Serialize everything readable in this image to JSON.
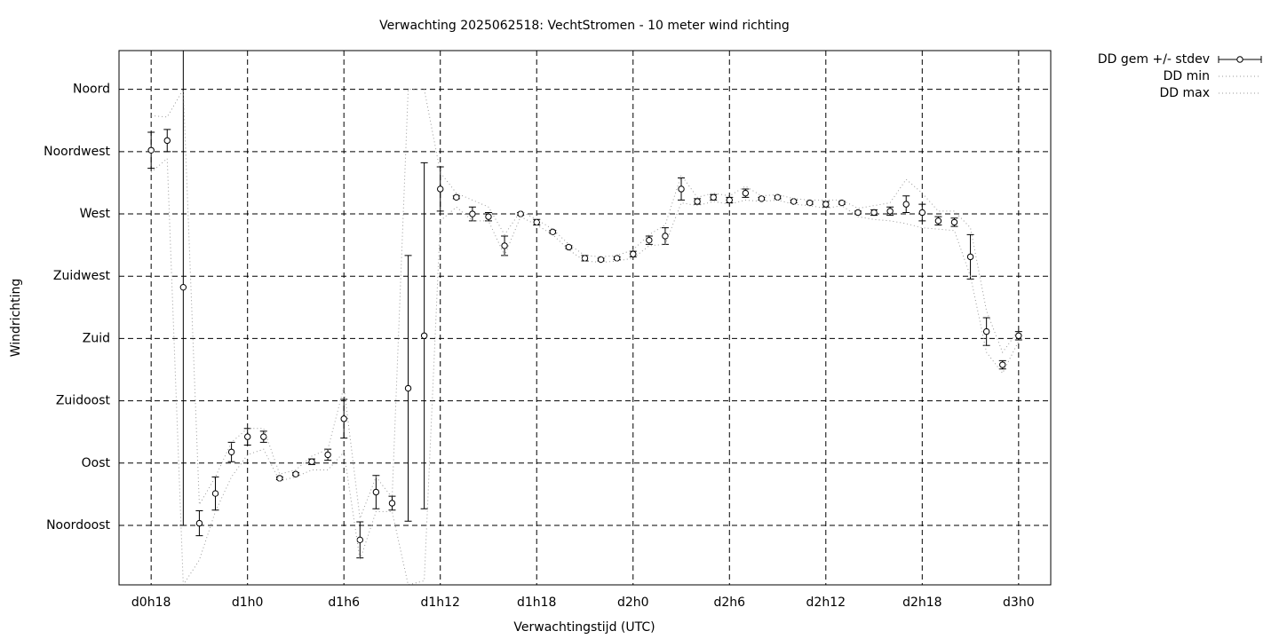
{
  "chart_data": {
    "type": "line",
    "title": "Verwachting 2025062518: VechtStromen - 10 meter wind richting",
    "x_label": "Verwachtingstijd (UTC)",
    "y_label": "Windrichting",
    "x": [
      18,
      19,
      20,
      21,
      22,
      23,
      24,
      25,
      26,
      27,
      28,
      29,
      30,
      31,
      32,
      33,
      34,
      35,
      36,
      37,
      38,
      39,
      40,
      41,
      42,
      43,
      44,
      45,
      46,
      47,
      48,
      49,
      50,
      51,
      52,
      53,
      54,
      55,
      56,
      57,
      58,
      59,
      60,
      61,
      62,
      63,
      64,
      65,
      66,
      67,
      68,
      69,
      70,
      71,
      72
    ],
    "series": [
      {
        "name": "DD gem +/- stdev",
        "color": "#000000",
        "style": "errorbars",
        "values": [
          316,
          323,
          217,
          46.5,
          68,
          98,
          109,
          109,
          79,
          82,
          91,
          96,
          122,
          34.5,
          69,
          61,
          144,
          182,
          288,
          282,
          270,
          268,
          247,
          270,
          264,
          257,
          246,
          238,
          237,
          238,
          241,
          251,
          254,
          288,
          279,
          282,
          280,
          285,
          281,
          282,
          279,
          278,
          277,
          278,
          271,
          271,
          272,
          277,
          271,
          265,
          264,
          239,
          185,
          161,
          182
        ],
        "errors": [
          13,
          8,
          172,
          9,
          12,
          7,
          6,
          4,
          1,
          1,
          2,
          4,
          14,
          13,
          12,
          5,
          96,
          125,
          16,
          1,
          5,
          3,
          7,
          1,
          2,
          1,
          1,
          2,
          1,
          1,
          2,
          3,
          6,
          8,
          2,
          2,
          2,
          3,
          1,
          1,
          1,
          1,
          2,
          1,
          1,
          2,
          3,
          6,
          6,
          3,
          3,
          16,
          10,
          3,
          3
        ]
      },
      {
        "name": "DD min",
        "color": "#999999",
        "style": "dotted",
        "values": [
          300,
          310,
          2,
          20,
          55,
          80,
          96,
          100,
          77,
          80,
          85,
          85,
          98,
          20,
          55,
          55,
          2,
          5,
          265,
          275,
          265,
          265,
          240,
          268,
          262,
          255,
          244,
          236,
          235,
          236,
          238,
          247,
          248,
          278,
          276,
          279,
          277,
          280,
          279,
          280,
          277,
          276,
          274,
          276,
          268,
          266,
          265,
          263,
          260,
          259,
          258,
          225,
          170,
          155,
          178
        ]
      },
      {
        "name": "DD max",
        "color": "#999999",
        "style": "dotted",
        "values": [
          341,
          340,
          360,
          60,
          80,
          105,
          115,
          115,
          82,
          85,
          95,
          100,
          145,
          50,
          80,
          65,
          360,
          360,
          300,
          285,
          280,
          275,
          255,
          272,
          266,
          259,
          248,
          240,
          239,
          240,
          244,
          255,
          262,
          298,
          282,
          285,
          283,
          290,
          283,
          284,
          281,
          280,
          280,
          280,
          274,
          276,
          278,
          295,
          285,
          272,
          272,
          260,
          200,
          170,
          186
        ]
      }
    ],
    "xlim": [
      16,
      74
    ],
    "xticks": [
      {
        "value": 18,
        "label": "d0h18"
      },
      {
        "value": 24,
        "label": "d1h0"
      },
      {
        "value": 30,
        "label": "d1h6"
      },
      {
        "value": 36,
        "label": "d1h12"
      },
      {
        "value": 42,
        "label": "d1h18"
      },
      {
        "value": 48,
        "label": "d2h0"
      },
      {
        "value": 54,
        "label": "d2h6"
      },
      {
        "value": 60,
        "label": "d2h12"
      },
      {
        "value": 66,
        "label": "d2h18"
      },
      {
        "value": 72,
        "label": "d3h0"
      }
    ],
    "ylim": [
      2,
      388
    ],
    "yticks": [
      {
        "value": 45,
        "label": "Noordoost"
      },
      {
        "value": 90,
        "label": "Oost"
      },
      {
        "value": 135,
        "label": "Zuidoost"
      },
      {
        "value": 180,
        "label": "Zuid"
      },
      {
        "value": 225,
        "label": "Zuidwest"
      },
      {
        "value": 270,
        "label": "West"
      },
      {
        "value": 315,
        "label": "Noordwest"
      },
      {
        "value": 360,
        "label": "Noord"
      }
    ],
    "grid": true,
    "legend": "outside-top-right"
  }
}
